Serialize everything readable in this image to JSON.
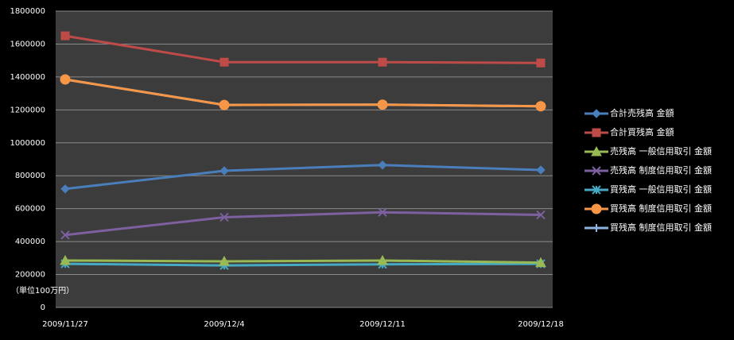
{
  "chart_data": {
    "type": "line",
    "categories": [
      "2009/11/27",
      "2009/12/4",
      "2009/12/11",
      "2009/12/18"
    ],
    "annotation": "（単位100万円）",
    "ylim": [
      0,
      1800000
    ],
    "yticks": [
      0,
      200000,
      400000,
      600000,
      800000,
      1000000,
      1200000,
      1400000,
      1600000,
      1800000
    ],
    "grid": true,
    "legend": "right",
    "series": [
      {
        "name": "合計売残高 金額",
        "color": "#4a7ebb",
        "marker": "diamond",
        "values": [
          720000,
          830000,
          865000,
          835000
        ]
      },
      {
        "name": "合計買残高 金額",
        "color": "#be4b48",
        "marker": "square",
        "values": [
          1650000,
          1490000,
          1490000,
          1485000
        ]
      },
      {
        "name": "売残高 一般信用取引 金額",
        "color": "#98b954",
        "marker": "triangle",
        "values": [
          285000,
          280000,
          285000,
          272000
        ]
      },
      {
        "name": "売残高 制度信用取引 金額",
        "color": "#7d60a0",
        "marker": "x",
        "values": [
          440000,
          548000,
          578000,
          562000
        ]
      },
      {
        "name": "買残高 一般信用取引 金額",
        "color": "#46aac5",
        "marker": "star",
        "values": [
          265000,
          255000,
          262000,
          265000
        ]
      },
      {
        "name": "買残高 制度信用取引 金額",
        "color": "#f79646",
        "marker": "circle",
        "values": [
          1385000,
          1230000,
          1232000,
          1222000
        ]
      },
      {
        "name": "買残高 制度信用取引 金額",
        "color": "#8db3e2",
        "marker": "plus",
        "values": [
          1385000,
          1230000,
          1232000,
          1222000
        ]
      }
    ]
  }
}
